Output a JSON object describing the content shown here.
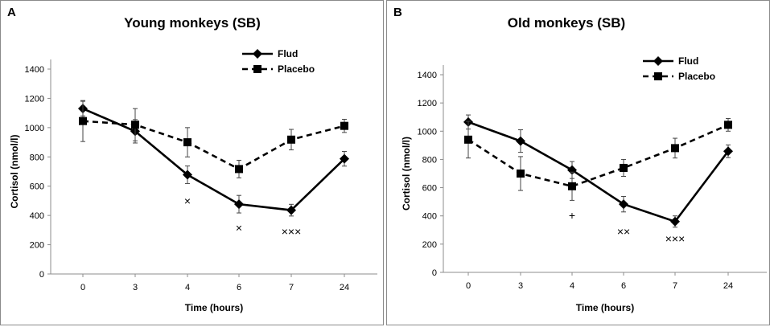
{
  "chart_data": [
    {
      "type": "line",
      "panel_label": "A",
      "title": "Young monkeys (SB)",
      "xlabel": "Time (hours)",
      "ylabel": "Cortisol (nmol/l)",
      "categories": [
        "0",
        "3",
        "4",
        "6",
        "7",
        "24"
      ],
      "ylim": [
        0,
        1400
      ],
      "yticks": [
        0,
        200,
        400,
        600,
        800,
        1000,
        1200,
        1400
      ],
      "legend_position": "top-right",
      "series": [
        {
          "name": "Flud",
          "style": "solid",
          "marker": "diamond",
          "values": [
            1130,
            975,
            678,
            477,
            436,
            787
          ],
          "errors": [
            50,
            80,
            60,
            60,
            40,
            50
          ]
        },
        {
          "name": "Placebo",
          "style": "dashed",
          "marker": "square",
          "values": [
            1045,
            1020,
            900,
            717,
            918,
            1012
          ],
          "errors": [
            140,
            110,
            100,
            60,
            70,
            45
          ]
        }
      ],
      "annotations": [
        {
          "category": "4",
          "y": 500,
          "text": "×"
        },
        {
          "category": "6",
          "y": 315,
          "text": "×"
        },
        {
          "category": "7",
          "y": 290,
          "text": "×××"
        }
      ]
    },
    {
      "type": "line",
      "panel_label": "B",
      "title": "Old monkeys (SB)",
      "xlabel": "Time (hours)",
      "ylabel": "Cortisol (nmol/l)",
      "categories": [
        "0",
        "3",
        "4",
        "6",
        "7",
        "24"
      ],
      "ylim": [
        0,
        1400
      ],
      "yticks": [
        0,
        200,
        400,
        600,
        800,
        1000,
        1200,
        1400
      ],
      "legend_position": "top-right",
      "series": [
        {
          "name": "Flud",
          "style": "solid",
          "marker": "diamond",
          "values": [
            1065,
            930,
            725,
            483,
            360,
            858
          ],
          "errors": [
            50,
            80,
            60,
            55,
            40,
            45
          ]
        },
        {
          "name": "Placebo",
          "style": "dashed",
          "marker": "square",
          "values": [
            940,
            700,
            610,
            740,
            880,
            1045
          ],
          "errors": [
            130,
            120,
            100,
            60,
            70,
            45
          ]
        }
      ],
      "annotations": [
        {
          "category": "4",
          "y": 405,
          "text": "+"
        },
        {
          "category": "6",
          "y": 290,
          "text": "××"
        },
        {
          "category": "7",
          "y": 240,
          "text": "×××"
        }
      ]
    }
  ]
}
